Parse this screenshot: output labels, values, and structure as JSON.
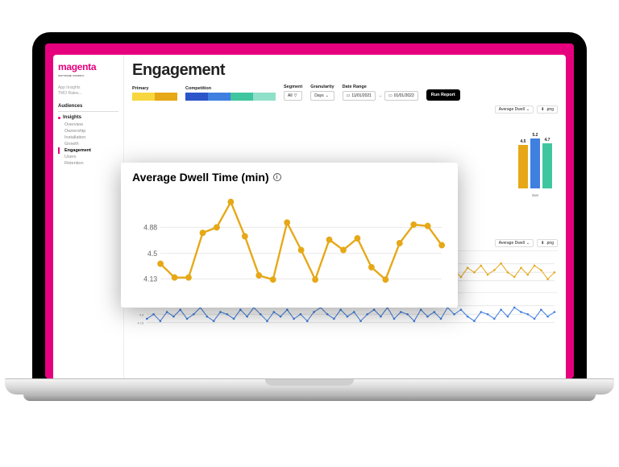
{
  "brand": {
    "name": "magenta",
    "tagline": "SOFTWARE COMPANY",
    "color": "#e6007e"
  },
  "breadcrumb": {
    "line1": "App Insights",
    "line2": "TMO Rates..."
  },
  "sidebar": {
    "heading": "Audiences",
    "group": "Insights",
    "items": [
      {
        "label": "Overview"
      },
      {
        "label": "Ownership"
      },
      {
        "label": "Installation"
      },
      {
        "label": "Growth"
      },
      {
        "label": "Engagement",
        "active": true
      },
      {
        "label": "Users"
      },
      {
        "label": "Retention"
      }
    ]
  },
  "page": {
    "title": "Engagement"
  },
  "filters": {
    "primary_label": "Primary",
    "primary_colors": [
      "#f7d63f",
      "#e6a817"
    ],
    "competition_label": "Competition",
    "competition_colors": [
      "#2b55c9",
      "#3f7fe0",
      "#3fc6a0",
      "#8fe0c8"
    ],
    "segment_label": "Segment",
    "segment_value": "All",
    "granularity_label": "Granularity",
    "granularity_value": "Days",
    "range_label": "Date Range",
    "range_start": "11/01/2021",
    "range_end": "01/01/2022",
    "run_label": "Run Report"
  },
  "panel_controls": {
    "metric_label": "Average Dwell",
    "export_label": ".png"
  },
  "popout_chart": {
    "type": "line",
    "title": "Average Dwell Time (min)",
    "color": "#e6a817",
    "marker": "circle",
    "marker_size": 4,
    "line_width": 2.4,
    "background_color": "#ffffff",
    "grid_color": "#e8e8e8",
    "ylim": [
      3.9,
      5.4
    ],
    "yticks": [
      4.13,
      4.5,
      4.88
    ],
    "values": [
      4.35,
      4.15,
      4.15,
      4.8,
      4.88,
      5.25,
      4.75,
      4.18,
      4.12,
      4.95,
      4.55,
      4.12,
      4.7,
      4.55,
      4.72,
      4.3,
      4.12,
      4.65,
      4.92,
      4.9,
      4.62
    ]
  },
  "bar_chart": {
    "type": "bar",
    "category_label": "Sun",
    "ylim": [
      0,
      6
    ],
    "bars": [
      {
        "value": 4.5,
        "color": "#e6a817"
      },
      {
        "value": 5.2,
        "color": "#3f7fe0"
      },
      {
        "value": 4.7,
        "color": "#3fc6a0"
      }
    ]
  },
  "mini_chart_a": {
    "type": "line",
    "color": "#e6a817",
    "yticks": [
      "4.88",
      "4.5",
      "4.13"
    ],
    "ylim": [
      3.9,
      5.3
    ],
    "values": [
      4.4,
      4.2,
      4.6,
      4.3,
      4.8,
      4.5,
      4.2,
      4.9,
      4.4,
      4.7,
      4.3,
      4.5,
      4.2,
      4.8,
      4.6,
      4.4,
      4.9,
      4.5,
      4.3,
      4.7,
      4.4,
      4.6,
      4.2,
      4.8,
      5.0,
      4.6,
      4.9,
      4.5,
      4.3,
      4.7,
      4.4,
      4.2,
      4.6,
      4.8,
      4.5,
      4.9,
      4.4,
      4.7,
      4.3,
      4.6,
      4.2,
      4.8,
      4.5,
      4.7,
      4.4,
      4.9,
      4.6,
      4.3,
      4.7,
      4.5,
      4.8,
      4.4,
      4.6,
      4.9,
      4.5,
      4.3,
      4.7,
      4.4,
      4.8,
      4.6,
      4.2,
      4.5
    ]
  },
  "mini_chart_b": {
    "type": "line",
    "color": "#3f7fe0",
    "yticks": [
      "4.88",
      "4.5",
      "4.13"
    ],
    "ylim": [
      3.9,
      5.3
    ],
    "values": [
      4.3,
      4.5,
      4.2,
      4.6,
      4.4,
      4.7,
      4.3,
      4.5,
      4.8,
      4.4,
      4.2,
      4.6,
      4.5,
      4.3,
      4.7,
      4.4,
      4.8,
      4.5,
      4.2,
      4.6,
      4.4,
      4.7,
      4.3,
      4.5,
      4.2,
      4.6,
      4.8,
      4.5,
      4.3,
      4.7,
      4.4,
      4.6,
      4.2,
      4.5,
      4.7,
      4.4,
      4.8,
      4.3,
      4.6,
      4.5,
      4.2,
      4.7,
      4.4,
      4.6,
      4.3,
      4.8,
      4.5,
      4.7,
      4.4,
      4.2,
      4.6,
      4.5,
      4.3,
      4.7,
      4.4,
      4.8,
      4.6,
      4.5,
      4.3,
      4.7,
      4.4,
      4.6
    ]
  }
}
